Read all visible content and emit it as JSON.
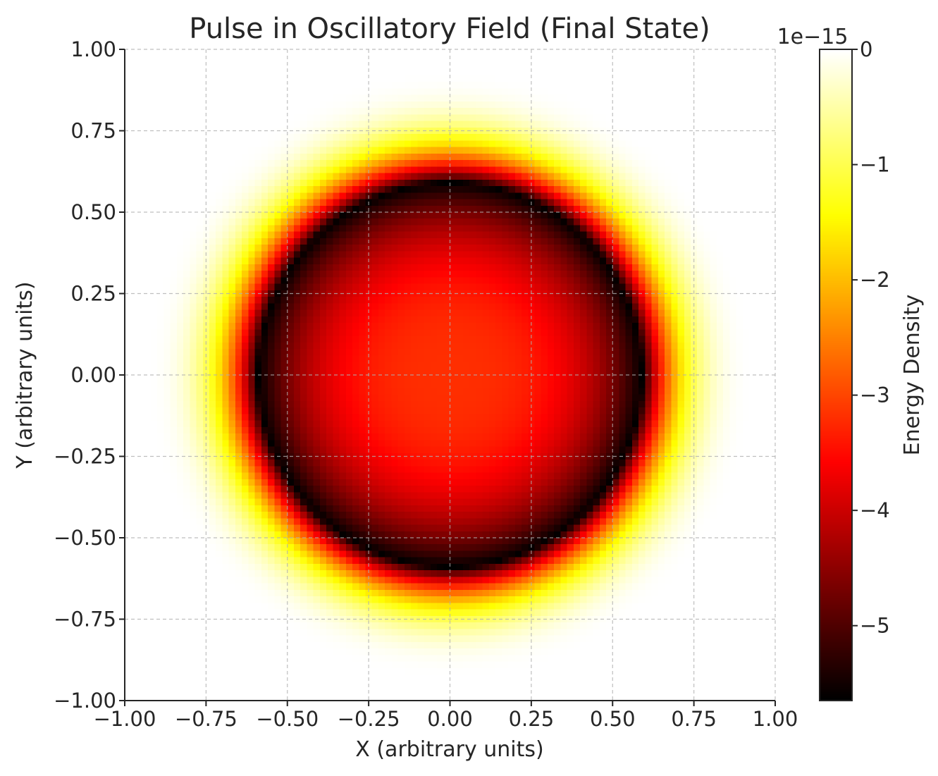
{
  "chart_data": {
    "type": "heatmap",
    "title": "Pulse in Oscillatory Field (Final State)",
    "xlabel": "X (arbitrary units)",
    "ylabel": "Y (arbitrary units)",
    "xlim": [
      -1.0,
      1.0
    ],
    "ylim": [
      -1.0,
      1.0
    ],
    "x_ticks": [
      -1.0,
      -0.75,
      -0.5,
      -0.25,
      0.0,
      0.25,
      0.5,
      0.75,
      1.0
    ],
    "y_ticks": [
      -1.0,
      -0.75,
      -0.5,
      -0.25,
      0.0,
      0.25,
      0.5,
      0.75,
      1.0
    ],
    "x_tick_labels": [
      "−1.00",
      "−0.75",
      "−0.50",
      "−0.25",
      "0.00",
      "0.25",
      "0.50",
      "0.75",
      "1.00"
    ],
    "y_tick_labels": [
      "−1.00",
      "−0.75",
      "−0.50",
      "−0.25",
      "0.00",
      "0.25",
      "0.50",
      "0.75",
      "1.00"
    ],
    "grid": true,
    "grid_resolution": 100,
    "colormap": "hot",
    "colorbar": {
      "label": "Energy Density",
      "offset_text": "1e−15",
      "range": [
        -5.65,
        0
      ],
      "ticks": [
        0,
        -1,
        -2,
        -3,
        -4,
        -5
      ],
      "tick_labels": [
        "0",
        "−1",
        "−2",
        "−3",
        "−4",
        "−5"
      ]
    },
    "field_profile": {
      "description_units": "value in units of 1e-15",
      "center_value": -3.2,
      "ring_radius": 0.59,
      "ring_min_value": -5.65,
      "outer_zero_radius": 0.95
    }
  }
}
